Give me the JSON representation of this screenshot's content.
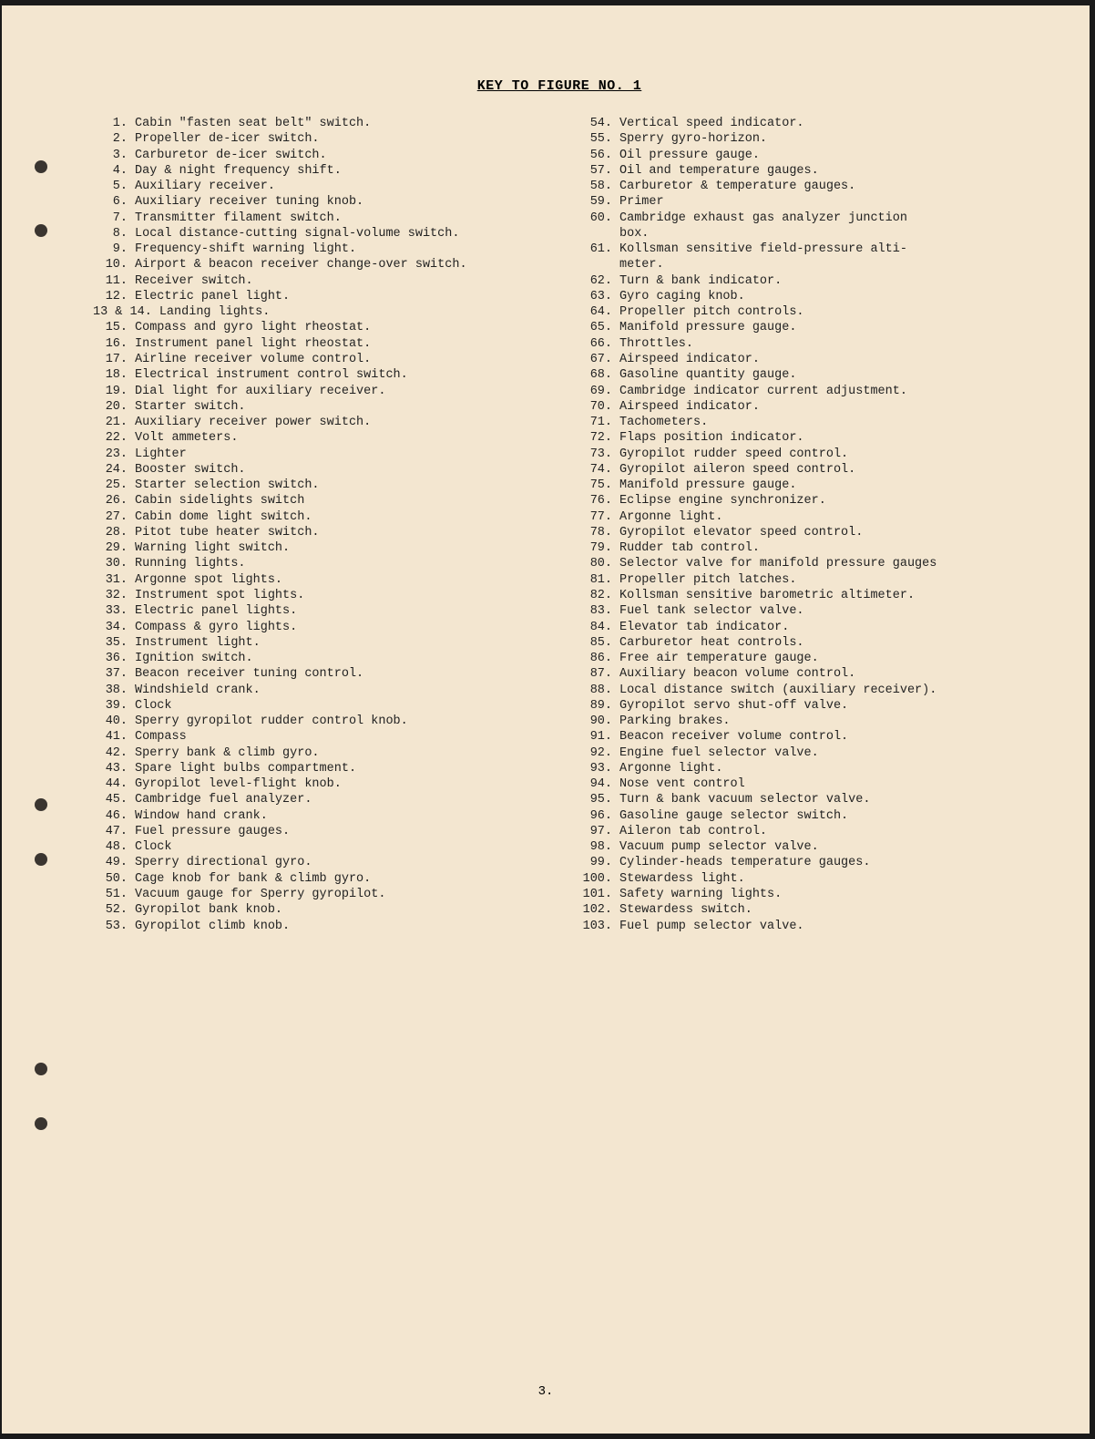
{
  "title": "KEY TO FIGURE NO. 1",
  "page_number": "3.",
  "left_items": [
    {
      "n": "1.",
      "t": "Cabin \"fasten seat belt\" switch."
    },
    {
      "n": "2.",
      "t": "Propeller de-icer switch."
    },
    {
      "n": "3.",
      "t": "Carburetor de-icer switch."
    },
    {
      "n": "4.",
      "t": "Day & night frequency shift."
    },
    {
      "n": "5.",
      "t": "Auxiliary receiver."
    },
    {
      "n": "6.",
      "t": "Auxiliary receiver tuning knob."
    },
    {
      "n": "7.",
      "t": "Transmitter filament switch."
    },
    {
      "n": "8.",
      "t": "Local distance-cutting signal-volume switch."
    },
    {
      "n": "9.",
      "t": "Frequency-shift warning light."
    },
    {
      "n": "10.",
      "t": "Airport & beacon receiver change-over switch."
    },
    {
      "n": "11.",
      "t": "Receiver switch."
    },
    {
      "n": "12.",
      "t": "Electric panel light."
    },
    {
      "n": "13 & 14.",
      "t": "Landing lights."
    },
    {
      "n": "15.",
      "t": "Compass and gyro light rheostat."
    },
    {
      "n": "16.",
      "t": "Instrument panel light rheostat."
    },
    {
      "n": "17.",
      "t": "Airline receiver volume control."
    },
    {
      "n": "18.",
      "t": "Electrical instrument control switch."
    },
    {
      "n": "19.",
      "t": "Dial light for auxiliary receiver."
    },
    {
      "n": "20.",
      "t": "Starter switch."
    },
    {
      "n": "21.",
      "t": "Auxiliary receiver power switch."
    },
    {
      "n": "22.",
      "t": "Volt ammeters."
    },
    {
      "n": "23.",
      "t": "Lighter"
    },
    {
      "n": "24.",
      "t": "Booster switch."
    },
    {
      "n": "25.",
      "t": "Starter selection switch."
    },
    {
      "n": "26.",
      "t": "Cabin sidelights switch"
    },
    {
      "n": "27.",
      "t": "Cabin dome light switch."
    },
    {
      "n": "28.",
      "t": "Pitot tube heater switch."
    },
    {
      "n": "29.",
      "t": "Warning light switch."
    },
    {
      "n": "30.",
      "t": "Running lights."
    },
    {
      "n": "31.",
      "t": "Argonne spot lights."
    },
    {
      "n": "32.",
      "t": "Instrument spot lights."
    },
    {
      "n": "33.",
      "t": "Electric panel lights."
    },
    {
      "n": "34.",
      "t": "Compass & gyro lights."
    },
    {
      "n": "35.",
      "t": "Instrument light."
    },
    {
      "n": "36.",
      "t": "Ignition switch."
    },
    {
      "n": "37.",
      "t": "Beacon receiver tuning control."
    },
    {
      "n": "38.",
      "t": "Windshield crank."
    },
    {
      "n": "39.",
      "t": "Clock"
    },
    {
      "n": "40.",
      "t": "Sperry gyropilot rudder control knob."
    },
    {
      "n": "41.",
      "t": "Compass"
    },
    {
      "n": "42.",
      "t": "Sperry bank & climb gyro."
    },
    {
      "n": "43.",
      "t": "Spare light bulbs compartment."
    },
    {
      "n": "44.",
      "t": "Gyropilot level-flight knob."
    },
    {
      "n": "45.",
      "t": "Cambridge fuel analyzer."
    },
    {
      "n": "46.",
      "t": "Window hand crank."
    },
    {
      "n": "47.",
      "t": "Fuel pressure gauges."
    },
    {
      "n": "48.",
      "t": "Clock"
    },
    {
      "n": "49.",
      "t": "Sperry directional gyro."
    },
    {
      "n": "50.",
      "t": "Cage knob for bank & climb gyro."
    },
    {
      "n": "51.",
      "t": "Vacuum gauge for Sperry gyropilot."
    },
    {
      "n": "52.",
      "t": "Gyropilot bank knob."
    },
    {
      "n": "53.",
      "t": "Gyropilot climb knob."
    }
  ],
  "right_items": [
    {
      "n": "54.",
      "t": "Vertical speed indicator."
    },
    {
      "n": "55.",
      "t": "Sperry gyro-horizon."
    },
    {
      "n": "56.",
      "t": "Oil pressure gauge."
    },
    {
      "n": "57.",
      "t": "Oil and temperature gauges."
    },
    {
      "n": "58.",
      "t": "Carburetor & temperature gauges."
    },
    {
      "n": "59.",
      "t": "Primer"
    },
    {
      "n": "60.",
      "t": "Cambridge exhaust gas analyzer junction",
      "wrap": "box."
    },
    {
      "n": "61.",
      "t": "Kollsman sensitive field-pressure alti-",
      "wrap": "meter."
    },
    {
      "n": "62.",
      "t": "Turn & bank indicator."
    },
    {
      "n": "63.",
      "t": "Gyro caging knob."
    },
    {
      "n": "64.",
      "t": "Propeller pitch controls."
    },
    {
      "n": "65.",
      "t": "Manifold pressure gauge."
    },
    {
      "n": "66.",
      "t": "Throttles."
    },
    {
      "n": "67.",
      "t": "Airspeed indicator."
    },
    {
      "n": "68.",
      "t": "Gasoline quantity gauge."
    },
    {
      "n": "69.",
      "t": "Cambridge indicator current adjustment."
    },
    {
      "n": "70.",
      "t": "Airspeed indicator."
    },
    {
      "n": "71.",
      "t": "Tachometers."
    },
    {
      "n": "72.",
      "t": "Flaps position indicator."
    },
    {
      "n": "73.",
      "t": "Gyropilot rudder speed control."
    },
    {
      "n": "74.",
      "t": "Gyropilot aileron speed control."
    },
    {
      "n": "75.",
      "t": "Manifold pressure gauge."
    },
    {
      "n": "76.",
      "t": "Eclipse engine synchronizer."
    },
    {
      "n": "77.",
      "t": "Argonne light."
    },
    {
      "n": "78.",
      "t": "Gyropilot elevator speed control."
    },
    {
      "n": "79.",
      "t": "Rudder tab control."
    },
    {
      "n": "80.",
      "t": "Selector valve for manifold pressure gauges"
    },
    {
      "n": "81.",
      "t": "Propeller pitch latches."
    },
    {
      "n": "82.",
      "t": "Kollsman sensitive barometric altimeter."
    },
    {
      "n": "83.",
      "t": "Fuel tank selector valve."
    },
    {
      "n": "84.",
      "t": "Elevator tab indicator."
    },
    {
      "n": "85.",
      "t": "Carburetor heat controls."
    },
    {
      "n": "86.",
      "t": "Free air temperature gauge."
    },
    {
      "n": "87.",
      "t": "Auxiliary beacon volume control."
    },
    {
      "n": "88.",
      "t": "Local distance switch (auxiliary receiver)."
    },
    {
      "n": "89.",
      "t": "Gyropilot servo shut-off valve."
    },
    {
      "n": "90.",
      "t": "Parking brakes."
    },
    {
      "n": "91.",
      "t": "Beacon receiver volume control."
    },
    {
      "n": "92.",
      "t": "Engine fuel selector valve."
    },
    {
      "n": "93.",
      "t": "Argonne light."
    },
    {
      "n": "94.",
      "t": "Nose vent control"
    },
    {
      "n": "95.",
      "t": "Turn & bank vacuum selector valve."
    },
    {
      "n": "96.",
      "t": "Gasoline gauge selector switch."
    },
    {
      "n": "97.",
      "t": "Aileron tab control."
    },
    {
      "n": "98.",
      "t": "Vacuum pump selector valve."
    },
    {
      "n": "99.",
      "t": "Cylinder-heads temperature gauges."
    },
    {
      "n": "100.",
      "t": "Stewardess light."
    },
    {
      "n": "101.",
      "t": "Safety warning lights."
    },
    {
      "n": "102.",
      "t": "Stewardess switch."
    },
    {
      "n": "103.",
      "t": "Fuel pump selector valve."
    }
  ]
}
